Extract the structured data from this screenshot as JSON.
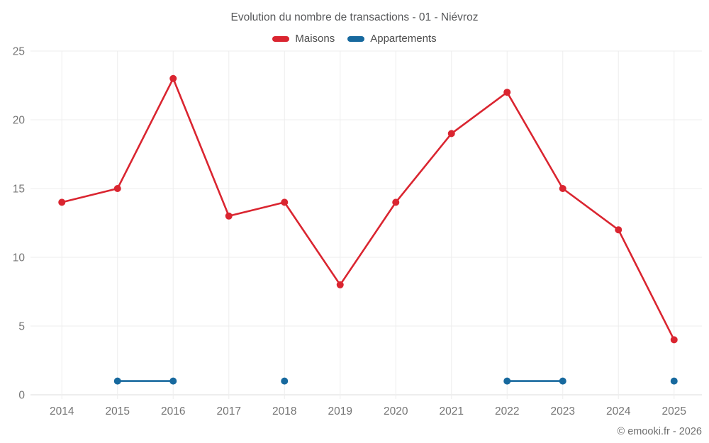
{
  "title": "Evolution du nombre de transactions - 01 - Niévroz",
  "footer": "© emooki.fr - 2026",
  "legend": [
    {
      "label": "Maisons",
      "color": "#da2530"
    },
    {
      "label": "Appartements",
      "color": "#17699e"
    }
  ],
  "colors": {
    "grid": "#ededed",
    "axis_line": "#dcdcdc",
    "tick_label": "#757575",
    "maisons": "#da2530",
    "appartements": "#17699e"
  },
  "chart_data": {
    "type": "line",
    "title": "Evolution du nombre de transactions - 01 - Niévroz",
    "categories": [
      "2014",
      "2015",
      "2016",
      "2017",
      "2018",
      "2019",
      "2020",
      "2021",
      "2022",
      "2023",
      "2024",
      "2025"
    ],
    "series": [
      {
        "name": "Maisons",
        "color": "#da2530",
        "values": [
          14,
          15,
          23,
          13,
          14,
          8,
          14,
          19,
          22,
          15,
          12,
          4
        ]
      },
      {
        "name": "Appartements",
        "color": "#17699e",
        "values": [
          null,
          1,
          1,
          null,
          1,
          null,
          null,
          null,
          1,
          1,
          null,
          1
        ]
      }
    ],
    "xlabel": "",
    "ylabel": "",
    "ylim": [
      0,
      25
    ],
    "yticks": [
      0,
      5,
      10,
      15,
      20,
      25
    ],
    "grid": true,
    "legend_position": "top"
  }
}
